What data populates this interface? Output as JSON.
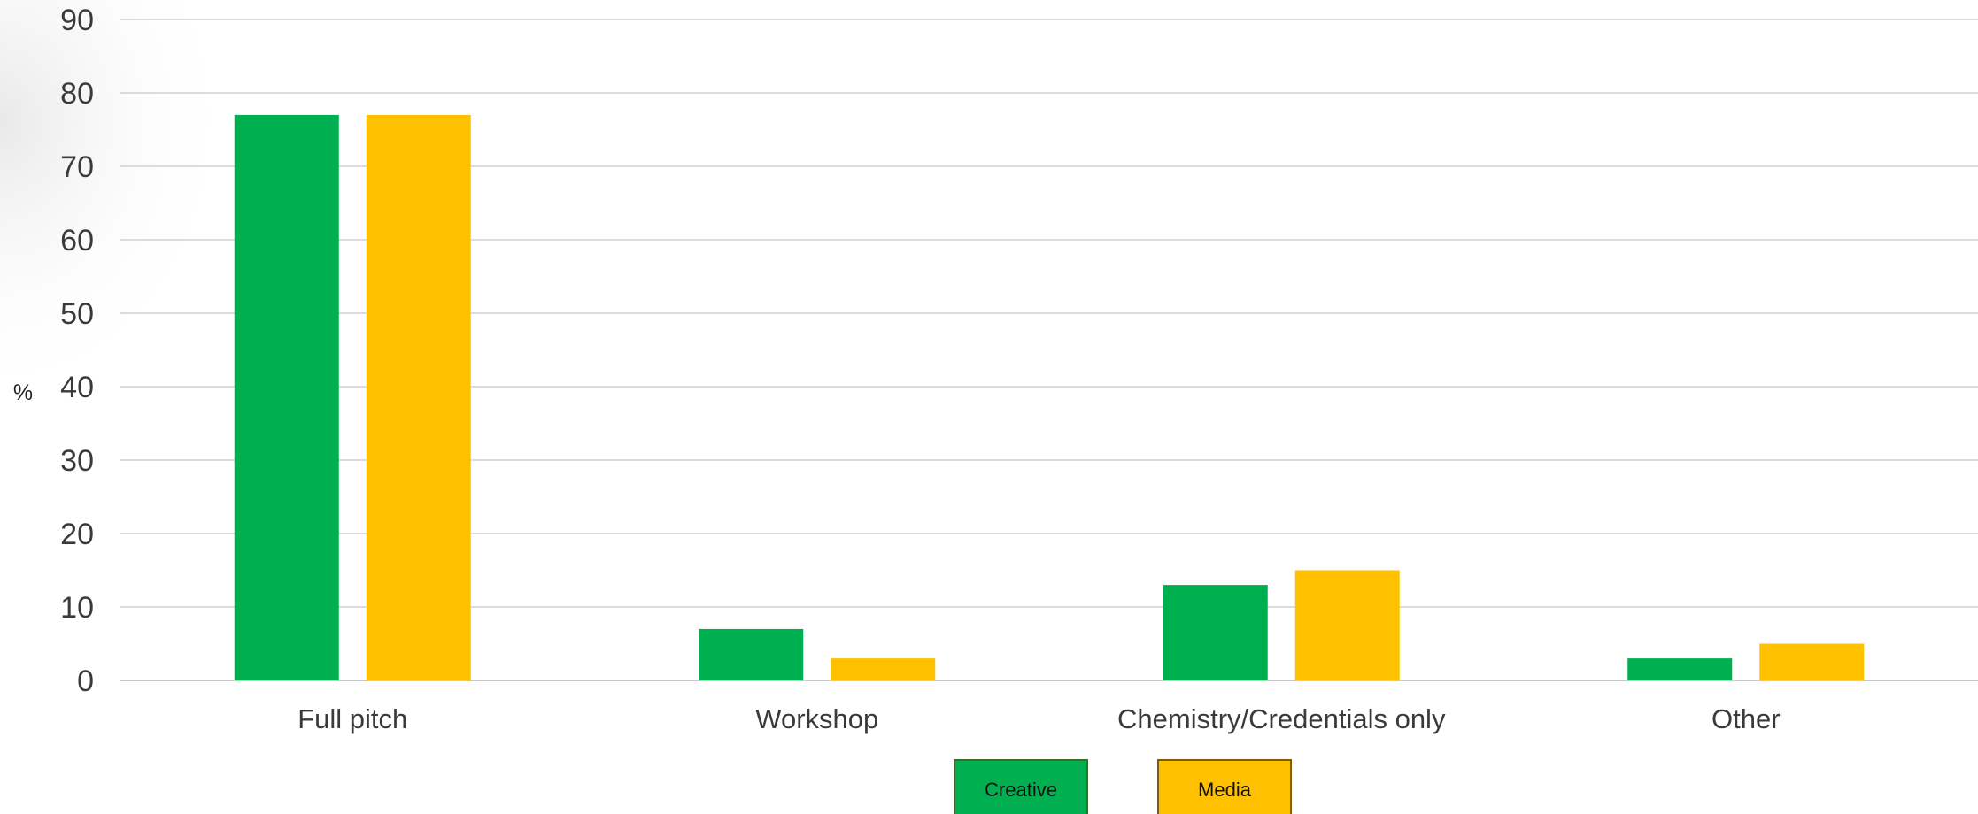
{
  "chart_data": {
    "type": "bar",
    "title": "",
    "xlabel": "",
    "ylabel": "%",
    "ylim": [
      0,
      90
    ],
    "yticks": [
      0,
      10,
      20,
      30,
      40,
      50,
      60,
      70,
      80,
      90
    ],
    "categories": [
      "Full pitch",
      "Workshop",
      "Chemistry/Credentials only",
      "Other"
    ],
    "series": [
      {
        "name": "Creative",
        "color": "#00b050",
        "values": [
          77,
          7,
          13,
          3
        ]
      },
      {
        "name": "Media",
        "color": "#ffc000",
        "values": [
          77,
          3,
          15,
          5
        ]
      }
    ],
    "grid": true,
    "legend_position": "bottom-center"
  }
}
